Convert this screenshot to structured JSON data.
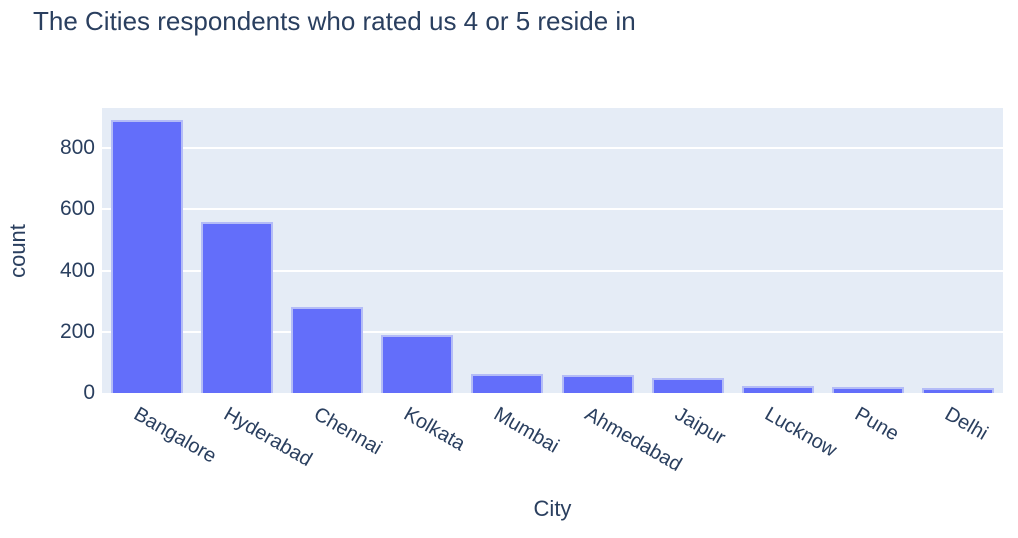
{
  "chart_data": {
    "type": "bar",
    "title": "The Cities respondents who rated us 4 or 5 reside in",
    "xlabel": "City",
    "ylabel": "count",
    "categories": [
      "Bangalore",
      "Hyderabad",
      "Chennai",
      "Kolkata",
      "Mumbai",
      "Ahmedabad",
      "Jaipur",
      "Lucknow",
      "Pune",
      "Delhi"
    ],
    "values": [
      890,
      558,
      281,
      190,
      63,
      60,
      48,
      24,
      21,
      15
    ],
    "yticks": [
      0,
      200,
      400,
      600,
      800
    ],
    "ylim": [
      0,
      935
    ],
    "grid": true,
    "legend_position": "none",
    "colors": {
      "bar_fill": "#636efa",
      "bar_border": "#b4bcf7",
      "plot_background": "#e5ecf6",
      "gridline": "#ffffff",
      "text": "#2a3f5f"
    }
  }
}
